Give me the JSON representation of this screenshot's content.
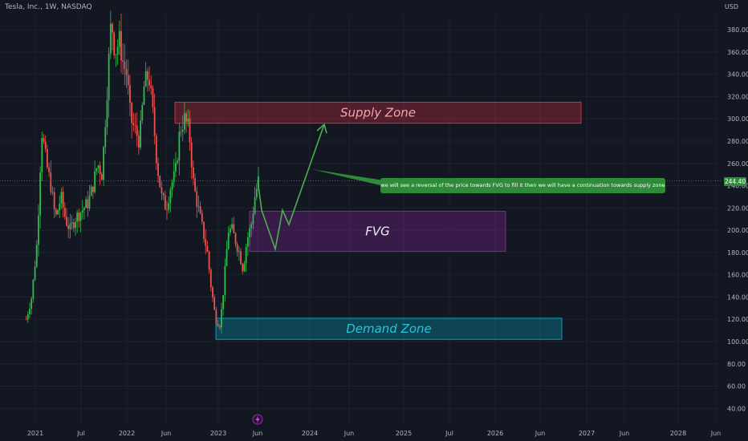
{
  "header": {
    "title": "Tesla, Inc., 1W, NASDAQ",
    "currency": "USD"
  },
  "colors": {
    "background": "#131722",
    "up": "#26a69a",
    "upBright": "#2ebd4a",
    "down": "#ef5350",
    "supply": "#f23645",
    "fvg": "#9c27b0",
    "demand": "#00bcd4",
    "arrow": "#4caf50",
    "callout": "#2e8b3a"
  },
  "chart_data": {
    "type": "candlestick",
    "y_ticks": [
      "380.00",
      "360.00",
      "340.00",
      "320.00",
      "300.00",
      "280.00",
      "260.00",
      "240.00",
      "220.00",
      "200.00",
      "180.00",
      "160.00",
      "140.00",
      "120.00",
      "100.00",
      "80.00",
      "60.00",
      "40.00"
    ],
    "x_ticks": [
      "2021",
      "Jul",
      "2022",
      "Jun",
      "2023",
      "Jun",
      "2024",
      "Jun",
      "2025",
      "Jul",
      "2026",
      "Jun",
      "2027",
      "Jun",
      "2028",
      "Jun"
    ],
    "last_price": "244.40",
    "zones": [
      {
        "label": "Supply Zone",
        "low": 296,
        "high": 315
      },
      {
        "label": "FVG",
        "low": 181,
        "high": 217
      },
      {
        "label": "Demand Zone",
        "low": 102,
        "high": 121
      }
    ],
    "annotation": "we will see a reversal of the price towards FVG to fill it then we will have a continuation towards supply zone",
    "projection": [
      245,
      218,
      183,
      218,
      205,
      295
    ],
    "series_shape": [
      [
        2020.9,
        120
      ],
      [
        2020.96,
        140
      ],
      [
        2021.02,
        190
      ],
      [
        2021.07,
        290
      ],
      [
        2021.12,
        260
      ],
      [
        2021.17,
        240
      ],
      [
        2021.22,
        210
      ],
      [
        2021.28,
        230
      ],
      [
        2021.33,
        210
      ],
      [
        2021.38,
        200
      ],
      [
        2021.43,
        210
      ],
      [
        2021.48,
        215
      ],
      [
        2021.53,
        220
      ],
      [
        2021.58,
        225
      ],
      [
        2021.63,
        240
      ],
      [
        2021.68,
        260
      ],
      [
        2021.73,
        250
      ],
      [
        2021.78,
        320
      ],
      [
        2021.83,
        390
      ],
      [
        2021.87,
        360
      ],
      [
        2021.92,
        370
      ],
      [
        2021.96,
        350
      ],
      [
        2022.0,
        340
      ],
      [
        2022.04,
        300
      ],
      [
        2022.09,
        290
      ],
      [
        2022.14,
        280
      ],
      [
        2022.19,
        330
      ],
      [
        2022.24,
        340
      ],
      [
        2022.29,
        300
      ],
      [
        2022.33,
        260
      ],
      [
        2022.38,
        230
      ],
      [
        2022.43,
        220
      ],
      [
        2022.48,
        240
      ],
      [
        2022.53,
        250
      ],
      [
        2022.58,
        290
      ],
      [
        2022.63,
        300
      ],
      [
        2022.68,
        290
      ],
      [
        2022.73,
        240
      ],
      [
        2022.78,
        220
      ],
      [
        2022.83,
        200
      ],
      [
        2022.88,
        180
      ],
      [
        2022.92,
        150
      ],
      [
        2022.97,
        120
      ],
      [
        2023.02,
        115
      ],
      [
        2023.06,
        150
      ],
      [
        2023.11,
        200
      ],
      [
        2023.15,
        200
      ],
      [
        2023.19,
        190
      ],
      [
        2023.23,
        180
      ],
      [
        2023.27,
        165
      ],
      [
        2023.31,
        190
      ],
      [
        2023.36,
        205
      ],
      [
        2023.4,
        230
      ],
      [
        2023.44,
        245
      ]
    ]
  }
}
